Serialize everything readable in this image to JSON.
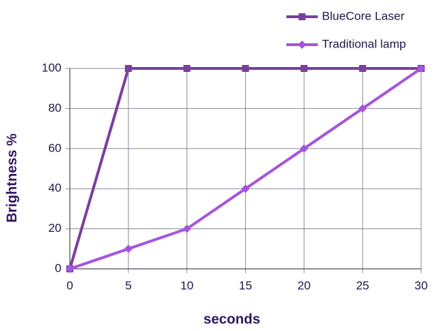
{
  "chart_data": {
    "type": "line",
    "x_label": "seconds",
    "y_label": "Brightness %",
    "x": [
      0,
      5,
      10,
      15,
      20,
      25,
      30
    ],
    "series": [
      {
        "name": "BlueCore Laser",
        "color": "#7a3f9e",
        "marker": "square",
        "values": [
          0,
          100,
          100,
          100,
          100,
          100,
          100
        ]
      },
      {
        "name": "Traditional lamp",
        "color": "#a654dc",
        "marker": "diamond",
        "values": [
          0,
          10,
          20,
          40,
          60,
          80,
          100
        ]
      }
    ],
    "xlim": [
      0,
      30
    ],
    "xticks": [
      0,
      5,
      10,
      15,
      20,
      25,
      30
    ],
    "ylim": [
      0,
      100
    ],
    "yticks": [
      0,
      20,
      40,
      60,
      80,
      100
    ],
    "grid": true,
    "legend": "top-right"
  }
}
